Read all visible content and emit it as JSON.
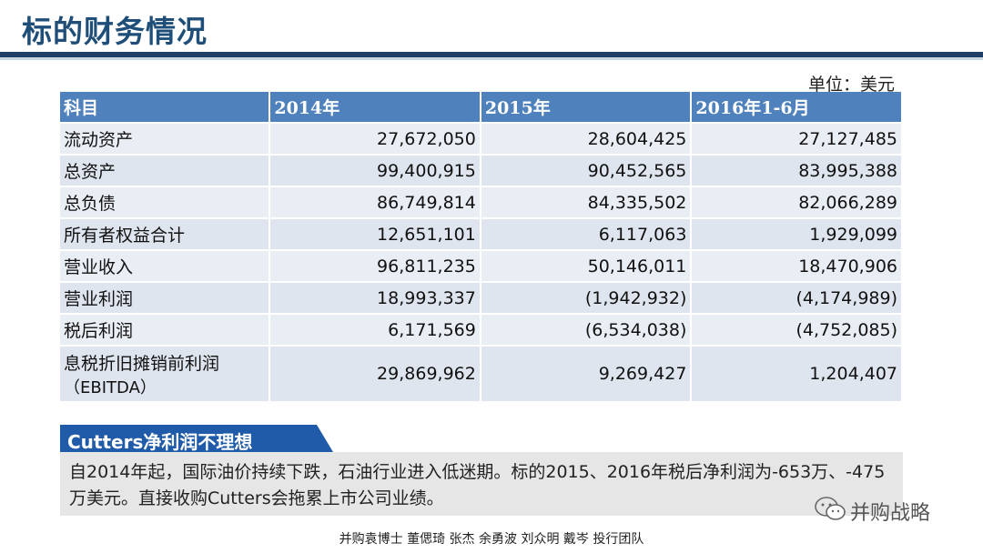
{
  "header": {
    "title": "标的财务情况"
  },
  "table": {
    "unit": "单位：美元",
    "columns": [
      "科目",
      "2014年",
      "2015年",
      "2016年1-6月"
    ],
    "rows": [
      {
        "label": "流动资产",
        "values": [
          "27,672,050",
          "28,604,425",
          "27,127,485"
        ]
      },
      {
        "label": "总资产",
        "values": [
          "99,400,915",
          "90,452,565",
          "83,995,388"
        ]
      },
      {
        "label": "总负债",
        "values": [
          "86,749,814",
          "84,335,502",
          "82,066,289"
        ]
      },
      {
        "label": "所有者权益合计",
        "values": [
          "12,651,101",
          "6,117,063",
          "1,929,099"
        ]
      },
      {
        "label": "营业收入",
        "values": [
          "96,811,235",
          "50,146,011",
          "18,470,906"
        ]
      },
      {
        "label": "营业利润",
        "values": [
          "18,993,337",
          "(1,942,932)",
          "(4,174,989)"
        ]
      },
      {
        "label": "税后利润",
        "values": [
          "6,171,569",
          "(6,534,038)",
          "(4,752,085)"
        ]
      },
      {
        "label": "息税折旧摊销前利润",
        "label2": "（EBITDA）",
        "values": [
          "29,869,962",
          "9,269,427",
          "1,204,407"
        ]
      }
    ]
  },
  "callout": {
    "heading": "Cutters净利润不理想",
    "body": "自2014年起，国际油价持续下跌，石油行业进入低迷期。标的2015、2016年税后净利润为-653万、-475万美元。直接收购Cutters会拖累上市公司业绩。"
  },
  "watermark": {
    "text": "并购战略",
    "icon": "wechat-icon"
  },
  "footer": {
    "text": "并购袁博士 董偲琦 张杰 余勇波 刘众明 戴岑 投行团队"
  },
  "colors": {
    "title": "#1f4e79",
    "header_fill": "#4f81bd",
    "row_fill": "#e9edf4",
    "callout_head": "#1f5ba8"
  }
}
